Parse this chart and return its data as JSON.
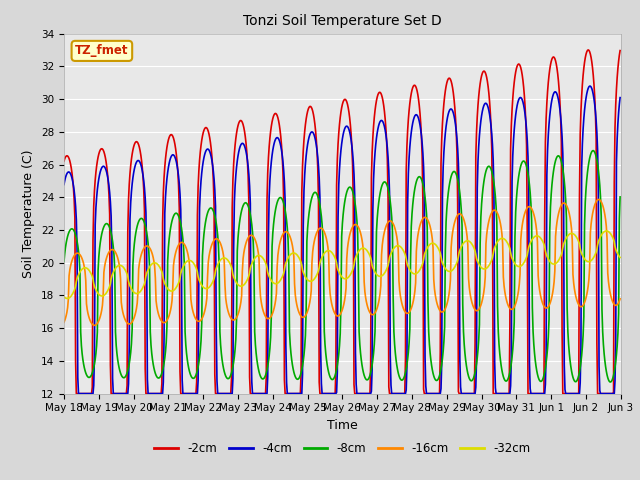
{
  "title": "Tonzi Soil Temperature Set D",
  "xlabel": "Time",
  "ylabel": "Soil Temperature (C)",
  "ylim": [
    12,
    34
  ],
  "yticks": [
    12,
    14,
    16,
    18,
    20,
    22,
    24,
    26,
    28,
    30,
    32,
    34
  ],
  "fig_bg": "#d8d8d8",
  "plot_bg": "#e8e8e8",
  "annotation_text": "TZ_fmet",
  "annotation_fg": "#cc2200",
  "annotation_bg": "#ffffcc",
  "annotation_border": "#cc9900",
  "series": [
    {
      "label": "-2cm",
      "color": "#dd0000",
      "lw": 1.2
    },
    {
      "label": "-4cm",
      "color": "#0000cc",
      "lw": 1.2
    },
    {
      "label": "-8cm",
      "color": "#00aa00",
      "lw": 1.2
    },
    {
      "label": "-16cm",
      "color": "#ff8800",
      "lw": 1.2
    },
    {
      "label": "-32cm",
      "color": "#dddd00",
      "lw": 1.2
    }
  ],
  "legend_colors": [
    "#dd0000",
    "#0000cc",
    "#00aa00",
    "#ff8800",
    "#dddd00"
  ],
  "legend_labels": [
    "-2cm",
    "-4cm",
    "-8cm",
    "-16cm",
    "-32cm"
  ],
  "n_days": 16,
  "pts_per_day": 48
}
